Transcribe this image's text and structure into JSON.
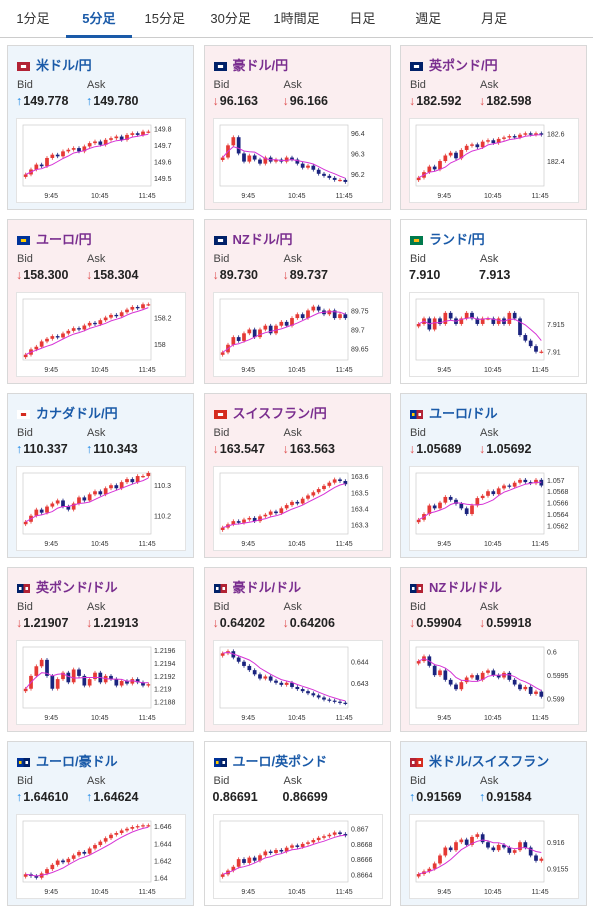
{
  "tabs": [
    {
      "label": "1分足",
      "active": false
    },
    {
      "label": "5分足",
      "active": true
    },
    {
      "label": "15分足",
      "active": false
    },
    {
      "label": "30分足",
      "active": false
    },
    {
      "label": "1時間足",
      "active": false
    },
    {
      "label": "日足",
      "active": false
    },
    {
      "label": "週足",
      "active": false
    },
    {
      "label": "月足",
      "active": false
    }
  ],
  "colors": {
    "accent": "#1a5aa8",
    "up_arrow": "#1e88e5",
    "down_arrow": "#e05050",
    "candle_up": "#e53935",
    "candle_down": "#1a237e",
    "ma_line": "#d633d6"
  },
  "labels": {
    "bid": "Bid",
    "ask": "Ask"
  },
  "x_ticks": [
    "9:45",
    "10:45",
    "11:45"
  ],
  "cards": [
    {
      "name": "米ドル/円",
      "flag": "us-flag",
      "trend": "up",
      "bid": "149.778",
      "ask": "149.780",
      "bid_dir": "up",
      "ask_dir": "up",
      "chart_data": {
        "type": "candlestick",
        "y_ticks": [
          "149.8",
          "149.7",
          "149.6",
          "149.5"
        ],
        "ylim": [
          149.45,
          149.82
        ],
        "close": [
          149.52,
          149.55,
          149.58,
          149.57,
          149.62,
          149.64,
          149.63,
          149.66,
          149.67,
          149.68,
          149.66,
          149.69,
          149.71,
          149.72,
          149.7,
          149.73,
          149.74,
          149.75,
          149.73,
          149.76,
          149.77,
          149.76,
          149.78,
          149.78
        ]
      }
    },
    {
      "name": "豪ドル/円",
      "flag": "au-flag",
      "trend": "down",
      "bid": "96.163",
      "ask": "96.166",
      "bid_dir": "down",
      "ask_dir": "down",
      "chart_data": {
        "type": "candlestick",
        "y_ticks": [
          "96.4",
          "96.3",
          "96.2"
        ],
        "ylim": [
          96.14,
          96.44
        ],
        "close": [
          96.28,
          96.34,
          96.38,
          96.3,
          96.26,
          96.29,
          96.27,
          96.25,
          96.28,
          96.26,
          96.27,
          96.26,
          96.28,
          96.27,
          96.25,
          96.23,
          96.24,
          96.22,
          96.2,
          96.19,
          96.18,
          96.17,
          96.17,
          96.16
        ]
      }
    },
    {
      "name": "英ポンド/円",
      "flag": "gb-flag",
      "trend": "down",
      "bid": "182.592",
      "ask": "182.598",
      "bid_dir": "down",
      "ask_dir": "down",
      "chart_data": {
        "type": "candlestick",
        "y_ticks": [
          "182.6",
          "182.4"
        ],
        "ylim": [
          182.22,
          182.66
        ],
        "close": [
          182.28,
          182.32,
          182.36,
          182.34,
          182.4,
          182.44,
          182.46,
          182.42,
          182.48,
          182.51,
          182.52,
          182.5,
          182.54,
          182.55,
          182.53,
          182.56,
          182.57,
          182.58,
          182.57,
          182.59,
          182.6,
          182.59,
          182.6,
          182.59
        ]
      }
    },
    {
      "name": "ユーロ/円",
      "flag": "eu-flag",
      "trend": "down",
      "bid": "158.300",
      "ask": "158.304",
      "bid_dir": "down",
      "ask_dir": "down",
      "chart_data": {
        "type": "candlestick",
        "y_ticks": [
          "158.2",
          "158"
        ],
        "ylim": [
          157.88,
          158.34
        ],
        "close": [
          157.92,
          157.96,
          157.98,
          158.02,
          158.04,
          158.06,
          158.05,
          158.08,
          158.1,
          158.12,
          158.11,
          158.14,
          158.16,
          158.15,
          158.18,
          158.2,
          158.22,
          158.21,
          158.24,
          158.26,
          158.28,
          158.27,
          158.3,
          158.3
        ]
      }
    },
    {
      "name": "NZドル/円",
      "flag": "nz-flag",
      "trend": "down",
      "bid": "89.730",
      "ask": "89.737",
      "bid_dir": "down",
      "ask_dir": "down",
      "chart_data": {
        "type": "candlestick",
        "y_ticks": [
          "89.75",
          "89.7",
          "89.65"
        ],
        "ylim": [
          89.62,
          89.78
        ],
        "close": [
          89.64,
          89.66,
          89.68,
          89.67,
          89.69,
          89.7,
          89.68,
          89.7,
          89.71,
          89.69,
          89.71,
          89.72,
          89.71,
          89.73,
          89.74,
          89.73,
          89.75,
          89.76,
          89.75,
          89.74,
          89.75,
          89.73,
          89.74,
          89.73
        ]
      }
    },
    {
      "name": "ランド/円",
      "flag": "za-flag",
      "trend": "flat",
      "bid": "7.910",
      "ask": "7.913",
      "bid_dir": "none",
      "ask_dir": "none",
      "chart_data": {
        "type": "candlestick",
        "y_ticks": [
          "7.915",
          "7.91"
        ],
        "ylim": [
          7.9085,
          7.9195
        ],
        "close": [
          7.915,
          7.916,
          7.914,
          7.916,
          7.915,
          7.917,
          7.916,
          7.915,
          7.916,
          7.917,
          7.916,
          7.915,
          7.916,
          7.916,
          7.915,
          7.916,
          7.915,
          7.917,
          7.916,
          7.913,
          7.912,
          7.911,
          7.91,
          7.91
        ]
      }
    },
    {
      "name": "カナダドル/円",
      "flag": "ca-flag",
      "trend": "up",
      "bid": "110.337",
      "ask": "110.343",
      "bid_dir": "up",
      "ask_dir": "up",
      "chart_data": {
        "type": "candlestick",
        "y_ticks": [
          "110.3",
          "110.2"
        ],
        "ylim": [
          110.14,
          110.34
        ],
        "close": [
          110.18,
          110.2,
          110.22,
          110.21,
          110.23,
          110.24,
          110.25,
          110.23,
          110.22,
          110.24,
          110.26,
          110.25,
          110.27,
          110.28,
          110.27,
          110.29,
          110.3,
          110.29,
          110.31,
          110.32,
          110.31,
          110.33,
          110.33,
          110.34
        ]
      }
    },
    {
      "name": "スイスフラン/円",
      "flag": "ch-flag",
      "trend": "down",
      "bid": "163.547",
      "ask": "163.563",
      "bid_dir": "down",
      "ask_dir": "down",
      "chart_data": {
        "type": "candlestick",
        "y_ticks": [
          "163.6",
          "163.5",
          "163.4",
          "163.3"
        ],
        "ylim": [
          163.24,
          163.62
        ],
        "close": [
          163.28,
          163.3,
          163.32,
          163.31,
          163.33,
          163.34,
          163.32,
          163.35,
          163.36,
          163.38,
          163.37,
          163.4,
          163.42,
          163.44,
          163.43,
          163.46,
          163.48,
          163.5,
          163.52,
          163.54,
          163.56,
          163.58,
          163.57,
          163.55
        ]
      }
    },
    {
      "name": "ユーロ/ドル",
      "flag": "eu-us-flag",
      "trend": "up",
      "bid": "1.05689",
      "ask": "1.05692",
      "bid_dir": "down",
      "ask_dir": "down",
      "chart_data": {
        "type": "candlestick",
        "y_ticks": [
          "1.057",
          "1.0568",
          "1.0566",
          "1.0564",
          "1.0562"
        ],
        "ylim": [
          1.05605,
          1.05712
        ],
        "close": [
          1.0563,
          1.0564,
          1.05655,
          1.0565,
          1.0566,
          1.0567,
          1.05665,
          1.05658,
          1.0565,
          1.0564,
          1.05655,
          1.05668,
          1.05672,
          1.0568,
          1.05675,
          1.05685,
          1.0569,
          1.05688,
          1.05695,
          1.057,
          1.05696,
          1.05694,
          1.057,
          1.0569
        ]
      }
    },
    {
      "name": "英ポンド/ドル",
      "flag": "gb-us-flag",
      "trend": "down",
      "bid": "1.21907",
      "ask": "1.21913",
      "bid_dir": "down",
      "ask_dir": "down",
      "chart_data": {
        "type": "candlestick",
        "y_ticks": [
          "1.2196",
          "1.2194",
          "1.2192",
          "1.219",
          "1.2188"
        ],
        "ylim": [
          1.2187,
          1.21965
        ],
        "close": [
          1.219,
          1.2192,
          1.21935,
          1.21945,
          1.2192,
          1.219,
          1.21915,
          1.21925,
          1.2191,
          1.2193,
          1.2192,
          1.21905,
          1.21915,
          1.21925,
          1.2191,
          1.2192,
          1.21915,
          1.21905,
          1.21912,
          1.21908,
          1.21915,
          1.2191,
          1.21905,
          1.21907
        ]
      }
    },
    {
      "name": "豪ドル/ドル",
      "flag": "au-us-flag",
      "trend": "down",
      "bid": "0.64202",
      "ask": "0.64206",
      "bid_dir": "down",
      "ask_dir": "down",
      "chart_data": {
        "type": "candlestick",
        "y_ticks": [
          "0.644",
          "0.643"
        ],
        "ylim": [
          0.6418,
          0.6447
        ],
        "close": [
          0.6444,
          0.6445,
          0.6442,
          0.644,
          0.6438,
          0.6436,
          0.6434,
          0.6432,
          0.6433,
          0.6431,
          0.643,
          0.6429,
          0.643,
          0.6428,
          0.6427,
          0.6426,
          0.6425,
          0.6424,
          0.6423,
          0.6422,
          0.64215,
          0.6421,
          0.64205,
          0.64202
        ]
      }
    },
    {
      "name": "NZドル/ドル",
      "flag": "nz-us-flag",
      "trend": "down",
      "bid": "0.59904",
      "ask": "0.59918",
      "bid_dir": "down",
      "ask_dir": "down",
      "chart_data": {
        "type": "candlestick",
        "y_ticks": [
          "0.6",
          "0.5995",
          "0.599"
        ],
        "ylim": [
          0.5988,
          0.6001
        ],
        "close": [
          0.5998,
          0.5999,
          0.5997,
          0.5995,
          0.5996,
          0.5994,
          0.5993,
          0.5992,
          0.59935,
          0.59945,
          0.5995,
          0.5994,
          0.59955,
          0.5996,
          0.5995,
          0.59945,
          0.59955,
          0.5994,
          0.5993,
          0.5992,
          0.59925,
          0.5991,
          0.59915,
          0.59904
        ]
      }
    },
    {
      "name": "ユーロ/豪ドル",
      "flag": "eu-au-flag",
      "trend": "up",
      "bid": "1.64610",
      "ask": "1.64624",
      "bid_dir": "up",
      "ask_dir": "up",
      "chart_data": {
        "type": "candlestick",
        "y_ticks": [
          "1.646",
          "1.644",
          "1.642",
          "1.64"
        ],
        "ylim": [
          1.6395,
          1.6466
        ],
        "close": [
          1.6404,
          1.6402,
          1.64,
          1.6405,
          1.641,
          1.6415,
          1.642,
          1.6418,
          1.6422,
          1.6426,
          1.643,
          1.6428,
          1.6434,
          1.6438,
          1.6442,
          1.6446,
          1.645,
          1.6452,
          1.6455,
          1.6457,
          1.6459,
          1.646,
          1.6461,
          1.6461
        ]
      }
    },
    {
      "name": "ユーロ/英ポンド",
      "flag": "eu-gb-flag",
      "trend": "flat",
      "bid": "0.86691",
      "ask": "0.86699",
      "bid_dir": "none",
      "ask_dir": "none",
      "chart_data": {
        "type": "candlestick",
        "y_ticks": [
          "0.867",
          "0.8668",
          "0.8666",
          "0.8664"
        ],
        "ylim": [
          0.8663,
          0.8671
        ],
        "close": [
          0.8664,
          0.86645,
          0.8665,
          0.8666,
          0.86655,
          0.86662,
          0.86658,
          0.86665,
          0.8667,
          0.86668,
          0.86672,
          0.8667,
          0.86675,
          0.86678,
          0.86676,
          0.8668,
          0.86682,
          0.86685,
          0.86688,
          0.8669,
          0.86692,
          0.86695,
          0.86693,
          0.86691
        ]
      }
    },
    {
      "name": "米ドル/スイスフラン",
      "flag": "us-ch-flag",
      "trend": "up",
      "bid": "0.91569",
      "ask": "0.91584",
      "bid_dir": "up",
      "ask_dir": "up",
      "chart_data": {
        "type": "candlestick",
        "y_ticks": [
          "0.916",
          "0.9155"
        ],
        "ylim": [
          0.91525,
          0.9164
        ],
        "close": [
          0.9154,
          0.91545,
          0.9155,
          0.9156,
          0.91575,
          0.9159,
          0.91585,
          0.916,
          0.91605,
          0.91595,
          0.9161,
          0.91615,
          0.916,
          0.9159,
          0.91585,
          0.91595,
          0.9159,
          0.9158,
          0.91585,
          0.916,
          0.9159,
          0.91575,
          0.91565,
          0.91569
        ]
      }
    }
  ]
}
